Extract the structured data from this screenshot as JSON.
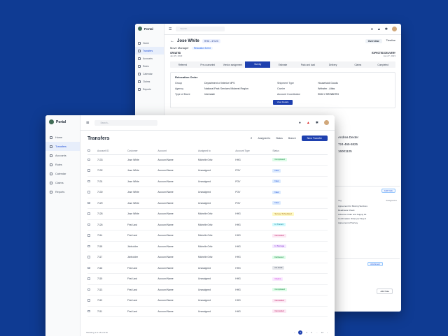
{
  "colors": {
    "background": "#0f3b93",
    "primary": "#1e40af"
  },
  "back": {
    "logo": "Portal",
    "search_placeholder": "Search...",
    "nav": [
      "Home",
      "Transfers",
      "Accounts",
      "Rules",
      "Calendar",
      "Claims",
      "Reports"
    ],
    "title": "Jose White",
    "move_id": "HHG - 47123",
    "tabs": [
      "Overview",
      "Timeline"
    ],
    "role": "Move Manager",
    "role_tag": "Relocation Event",
    "created_label": "CREATED",
    "created_date": "Jan 25, 2023",
    "expected_label": "EXPECTED DELIVERY",
    "expected_date": "Jan 27, 2023",
    "steps": [
      "Referred",
      "Pre-counseled",
      "Vendor assignment",
      "Survey",
      "Estimate",
      "Pack and load",
      "Delivery",
      "Claims",
      "Completed"
    ],
    "card_title": "Relocation Order",
    "fields": [
      {
        "label": "Group",
        "value": "Department of Interior NPS"
      },
      {
        "label": "Shipment Type",
        "value": "Household Goods"
      },
      {
        "label": "Agency",
        "value": "National Park Services Midwest Region"
      },
      {
        "label": "Carrier",
        "value": "Webster - Atlas"
      },
      {
        "label": "Type of Move",
        "value": "Interstate"
      },
      {
        "label": "Account Coordinator",
        "value": "EMILY BRINBERG"
      }
    ],
    "card_button": "View Details",
    "contact_name": "Andrea Dexter",
    "contact_phone": "724-465-5825",
    "contact_id": "16001125",
    "panel_pill": "Add Task",
    "panel_head_left": "Tag",
    "panel_head_right": "Assigned to",
    "panel_lines": [
      "Agreement for Moving Services",
      "Readiness Check",
      "Advance Order and Supply Kit",
      "Confirmation Order per Step 4",
      "Agreement of Survey"
    ],
    "panel2_pill": "Add Event",
    "add_note": "Add Note"
  },
  "front": {
    "logo": "Portal",
    "search_placeholder": "Search...",
    "nav": [
      "Home",
      "Transfers",
      "Accounts",
      "Rules",
      "Calendar",
      "Claims",
      "Reports"
    ],
    "title": "Transfers",
    "filters": [
      "Assigned to",
      "Status",
      "Branch"
    ],
    "new_button": "New Transfer",
    "columns": [
      "Account ID",
      "Customer",
      "Account",
      "Assigned to",
      "Account Type",
      "Status"
    ],
    "rows": [
      {
        "id": "7133",
        "customer": "Jose White",
        "account": "Account Name",
        "assigned": "Michelle Ortiz",
        "type": "HHG",
        "status": "Completed",
        "fg": "#15803d",
        "bg": "#dcfce7"
      },
      {
        "id": "7132",
        "customer": "Jose White",
        "account": "Account Name",
        "assigned": "Unassigned",
        "type": "POV",
        "status": "New",
        "fg": "#1d4ed8",
        "bg": "#dbeafe"
      },
      {
        "id": "7131",
        "customer": "Jose White",
        "account": "Account Name",
        "assigned": "Unassigned",
        "type": "POV",
        "status": "New",
        "fg": "#1d4ed8",
        "bg": "#dbeafe"
      },
      {
        "id": "7130",
        "customer": "Jose White",
        "account": "Account Name",
        "assigned": "Unassigned",
        "type": "POV",
        "status": "New",
        "fg": "#1d4ed8",
        "bg": "#dbeafe"
      },
      {
        "id": "7129",
        "customer": "Jose White",
        "account": "Account Name",
        "assigned": "Unassigned",
        "type": "POV",
        "status": "New",
        "fg": "#1d4ed8",
        "bg": "#dbeafe"
      },
      {
        "id": "7128",
        "customer": "Jose White",
        "account": "Account Name",
        "assigned": "Michelle Ortiz",
        "type": "HHG",
        "status": "Survey Scheduled",
        "fg": "#a16207",
        "bg": "#fef9c3"
      },
      {
        "id": "7126",
        "customer": "First Last",
        "account": "Account Name",
        "assigned": "Michelle Ortiz",
        "type": "HHG",
        "status": "In Transit",
        "fg": "#0e7490",
        "bg": "#cffafe"
      },
      {
        "id": "7114",
        "customer": "First Last",
        "account": "Account Name",
        "assigned": "Michelle Ortiz",
        "type": "HHG",
        "status": "Cancelled",
        "fg": "#be185d",
        "bg": "#fce7f3"
      },
      {
        "id": "7118",
        "customer": "Jobholder",
        "account": "Account Name",
        "assigned": "Michelle Ortiz",
        "type": "HHG",
        "status": "In Storage",
        "fg": "#7e22ce",
        "bg": "#f3e8ff"
      },
      {
        "id": "7117",
        "customer": "Jobholder",
        "account": "Account Name",
        "assigned": "Michelle Ortiz",
        "type": "HHG",
        "status": "Delivered",
        "fg": "#15803d",
        "bg": "#dcfce7"
      },
      {
        "id": "7116",
        "customer": "First Last",
        "account": "Account Name",
        "assigned": "Unassigned",
        "type": "HHG",
        "status": "On Hold",
        "fg": "#374151",
        "bg": "#e5e7eb"
      },
      {
        "id": "7115",
        "customer": "First Last",
        "account": "Account Name",
        "assigned": "Unassigned",
        "type": "HHG",
        "status": "Claims",
        "fg": "#c026d3",
        "bg": "#fae8ff"
      },
      {
        "id": "7113",
        "customer": "First Last",
        "account": "Account Name",
        "assigned": "Unassigned",
        "type": "HHG",
        "status": "Completed",
        "fg": "#15803d",
        "bg": "#dcfce7"
      },
      {
        "id": "7112",
        "customer": "First Last",
        "account": "Account Name",
        "assigned": "Unassigned",
        "type": "HHG",
        "status": "Cancelled",
        "fg": "#be185d",
        "bg": "#fce7f3"
      },
      {
        "id": "7111",
        "customer": "First Last",
        "account": "Account Name",
        "assigned": "Unassigned",
        "type": "HHG",
        "status": "Cancelled",
        "fg": "#be185d",
        "bg": "#fce7f3"
      }
    ],
    "footer": "Showing 1 to 15 of 179",
    "pages": [
      "‹",
      "1",
      "2",
      "3",
      "…",
      "12",
      "›"
    ]
  }
}
